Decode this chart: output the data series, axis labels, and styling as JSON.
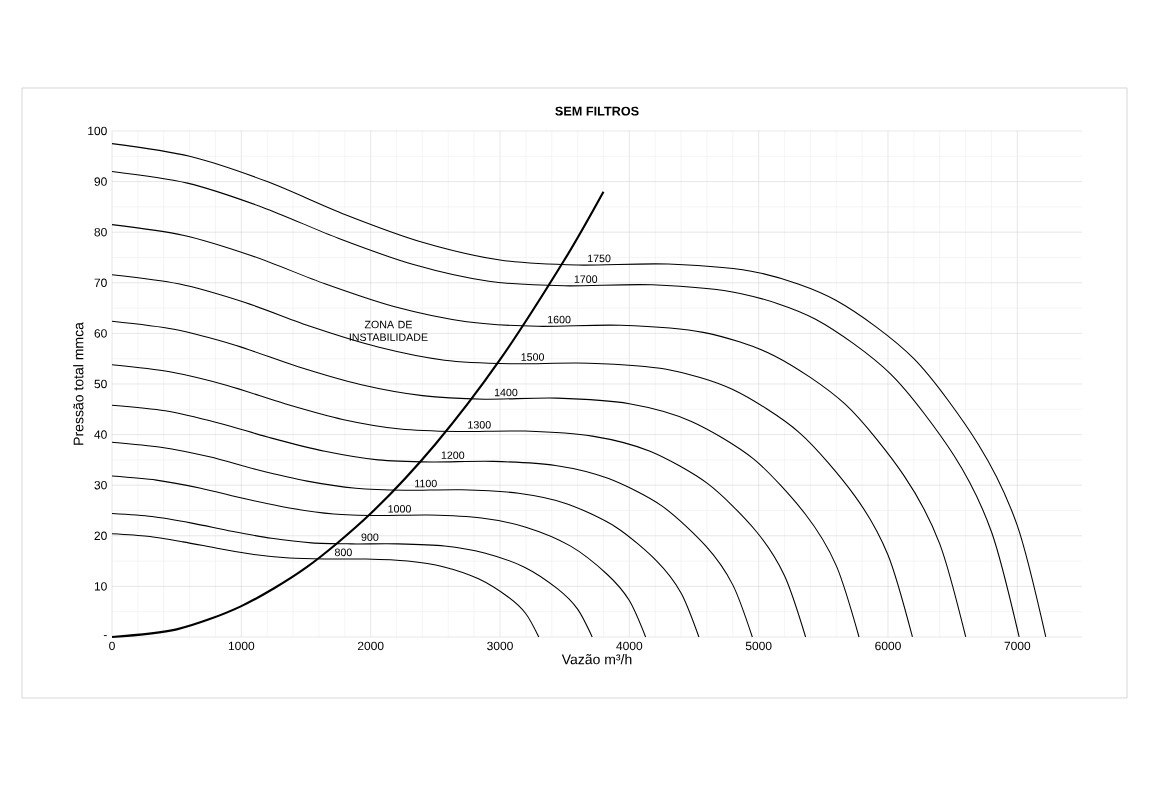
{
  "chart_data": {
    "type": "line",
    "title": "SEM FILTROS",
    "xlabel": "Vazão m³/h",
    "ylabel": "Pressão total mmca",
    "xlim": [
      0,
      7500
    ],
    "ylim": [
      0,
      100
    ],
    "xticks": [
      0,
      1000,
      2000,
      3000,
      4000,
      5000,
      6000,
      7000
    ],
    "yticks": [
      {
        "value": 0,
        "label": "-"
      },
      10,
      20,
      30,
      40,
      50,
      60,
      70,
      80,
      90,
      100
    ],
    "grid": true,
    "marker": "none",
    "annotations": [
      "ZONA DE INSTABILIDADE"
    ],
    "series": [
      {
        "name": "800",
        "color": "#000000",
        "x": [
          0,
          274,
          549,
          823,
          1097,
          1371,
          1646,
          1966,
          2286,
          2560,
          2834,
          3063,
          3200,
          3300
        ],
        "values": [
          20.4,
          19.9,
          18.8,
          17.5,
          16.3,
          15.6,
          15.4,
          15.4,
          15.0,
          13.9,
          11.5,
          7.9,
          4.6,
          0
        ]
      },
      {
        "name": "900",
        "color": "#000000",
        "x": [
          0,
          309,
          617,
          926,
          1234,
          1543,
          1851,
          2211,
          2571,
          2880,
          3189,
          3446,
          3600,
          3713
        ],
        "values": [
          24.4,
          23.8,
          22.5,
          20.9,
          19.5,
          18.6,
          18.4,
          18.4,
          18.0,
          16.6,
          13.8,
          9.5,
          5.5,
          0
        ]
      },
      {
        "name": "1000",
        "color": "#000000",
        "x": [
          0,
          343,
          686,
          1029,
          1371,
          1714,
          2057,
          2457,
          2857,
          3200,
          3543,
          3828,
          4000,
          4126
        ],
        "values": [
          31.8,
          31.0,
          29.4,
          27.3,
          25.5,
          24.3,
          24.0,
          24.1,
          23.5,
          21.7,
          18.0,
          12.4,
          7.2,
          0
        ]
      },
      {
        "name": "1100",
        "color": "#000000",
        "x": [
          0,
          377,
          754,
          1131,
          1509,
          1886,
          2263,
          2703,
          3143,
          3520,
          3897,
          4212,
          4400,
          4538
        ],
        "values": [
          38.5,
          37.5,
          35.6,
          33.0,
          30.8,
          29.4,
          29.0,
          29.1,
          28.4,
          26.3,
          21.7,
          15.0,
          8.7,
          0
        ]
      },
      {
        "name": "1200",
        "color": "#000000",
        "x": [
          0,
          411,
          823,
          1234,
          1646,
          2057,
          2469,
          2949,
          3429,
          3840,
          4251,
          4594,
          4800,
          4951
        ],
        "values": [
          45.8,
          44.7,
          42.3,
          39.3,
          36.7,
          35.0,
          34.6,
          34.7,
          33.9,
          31.3,
          25.9,
          17.9,
          10.3,
          0
        ]
      },
      {
        "name": "1300",
        "color": "#000000",
        "x": [
          0,
          446,
          891,
          1337,
          1783,
          2229,
          2674,
          3194,
          3714,
          4160,
          4606,
          4977,
          5200,
          5363
        ],
        "values": [
          53.8,
          52.4,
          49.7,
          46.1,
          43.0,
          41.1,
          40.6,
          40.7,
          39.7,
          36.7,
          30.3,
          21.0,
          12.1,
          0
        ]
      },
      {
        "name": "1400",
        "color": "#000000",
        "x": [
          0,
          480,
          960,
          1440,
          1920,
          2400,
          2880,
          3440,
          4000,
          4480,
          4960,
          5360,
          5600,
          5776
        ],
        "values": [
          62.4,
          60.8,
          57.6,
          53.4,
          49.9,
          47.7,
          47.0,
          47.2,
          46.1,
          42.6,
          35.2,
          24.3,
          14.1,
          0
        ]
      },
      {
        "name": "1500",
        "color": "#000000",
        "x": [
          0,
          514,
          1029,
          1543,
          2057,
          2571,
          3086,
          3686,
          4286,
          4800,
          5314,
          5743,
          6000,
          6189
        ],
        "values": [
          71.6,
          69.8,
          66.1,
          61.3,
          57.3,
          54.7,
          54.0,
          54.1,
          52.9,
          48.9,
          40.4,
          27.9,
          16.2,
          0
        ]
      },
      {
        "name": "1600",
        "color": "#000000",
        "x": [
          0,
          549,
          1097,
          1646,
          2194,
          2743,
          3291,
          3931,
          4571,
          5120,
          5669,
          6126,
          6400,
          6601
        ],
        "values": [
          81.5,
          79.4,
          75.2,
          69.8,
          65.2,
          62.3,
          61.4,
          61.6,
          60.2,
          55.6,
          46.0,
          31.8,
          18.4,
          0
        ]
      },
      {
        "name": "1700",
        "color": "#000000",
        "x": [
          0,
          583,
          1166,
          1749,
          2331,
          2914,
          3497,
          4177,
          4857,
          5440,
          6023,
          6509,
          6800,
          7014
        ],
        "values": [
          92.0,
          89.7,
          84.9,
          78.8,
          73.6,
          70.3,
          69.4,
          69.6,
          67.9,
          62.8,
          51.9,
          35.9,
          20.8,
          0
        ]
      },
      {
        "name": "1750",
        "color": "#000000",
        "x": [
          0,
          600,
          1200,
          1800,
          2400,
          3000,
          3600,
          4300,
          5000,
          5600,
          6200,
          6700,
          7000,
          7220
        ],
        "values": [
          97.5,
          95,
          90,
          83.5,
          78,
          74.5,
          73.5,
          73.7,
          72,
          66.5,
          55,
          38,
          22,
          0
        ]
      },
      {
        "color": "#000000",
        "x": [
          0,
          500,
          1000,
          1500,
          2000,
          2500,
          3000,
          3500,
          3800
        ],
        "values": [
          0,
          1.5,
          6.1,
          13.7,
          24.4,
          38.1,
          54.8,
          74.6,
          88.0
        ]
      }
    ]
  }
}
